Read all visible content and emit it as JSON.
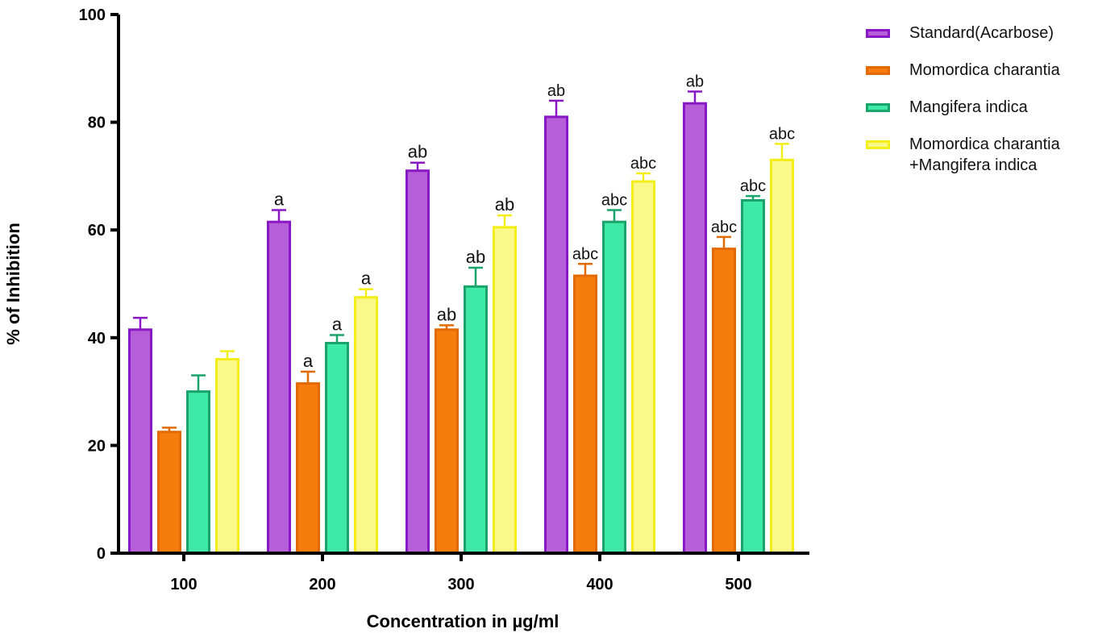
{
  "chart_data": {
    "type": "bar",
    "xlabel": "Concentration in µg/ml",
    "ylabel": "% of Inhibition",
    "ylim": [
      0,
      100
    ],
    "yticks": [
      "0",
      "20",
      "40",
      "60",
      "80",
      "100"
    ],
    "categories": [
      "100",
      "200",
      "300",
      "400",
      "500"
    ],
    "error_bars": true,
    "legend_position": "top-right",
    "series": [
      {
        "name": "Standard(Acarbose)",
        "color": "#b65fd8",
        "border": "#8a17c6",
        "values": [
          41.5,
          61.5,
          71,
          81,
          83.5
        ],
        "errors": [
          2.2,
          2.2,
          1.5,
          3,
          2.2
        ],
        "labels": [
          "",
          "a",
          "ab",
          "ab",
          "ab"
        ]
      },
      {
        "name": "Momordica charantia",
        "color": "#f57c0d",
        "border": "#e36a00",
        "values": [
          22.5,
          31.5,
          41.5,
          51.5,
          56.5
        ],
        "errors": [
          0.8,
          2.2,
          0.8,
          2.2,
          2.2
        ],
        "labels": [
          "",
          "a",
          "ab",
          "abc",
          "abc"
        ]
      },
      {
        "name": "Mangifera indica",
        "color": "#3fe9a8",
        "border": "#1aa46c",
        "values": [
          30,
          39,
          49.5,
          61.5,
          65.5
        ],
        "errors": [
          3,
          1.5,
          3.5,
          2.2,
          0.8
        ],
        "labels": [
          "",
          "a",
          "ab",
          "abc",
          "abc"
        ]
      },
      {
        "name": "Momordica charantia\n+Mangifera indica",
        "color": "#fbf88a",
        "border": "#f3ed18",
        "values": [
          36,
          47.5,
          60.5,
          69,
          73
        ],
        "errors": [
          1.5,
          1.5,
          2.2,
          1.5,
          3
        ],
        "labels": [
          "",
          "a",
          "ab",
          "abc",
          "abc"
        ]
      }
    ]
  }
}
